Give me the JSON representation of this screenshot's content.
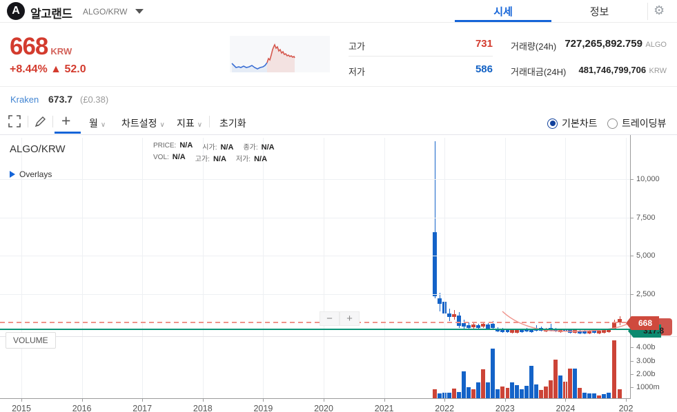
{
  "header": {
    "logo_letter": "A",
    "coin_name": "알고랜드",
    "pair": "ALGO/KRW",
    "tabs": [
      {
        "label": "시세",
        "active": true
      },
      {
        "label": "정보",
        "active": false
      }
    ],
    "gear_icon": "gear-icon"
  },
  "summary": {
    "price": "668",
    "currency": "KRW",
    "change_pct": "+8.44%",
    "change_arrow": "▲",
    "change_abs": "52.0",
    "high_label": "고가",
    "high_value": "731",
    "low_label": "저가",
    "low_value": "586",
    "volume_label": "거래량(24h)",
    "volume_value": "727,265,892.759",
    "volume_unit": "ALGO",
    "turnover_label": "거래대금(24H)",
    "turnover_value": "481,746,799,706",
    "turnover_unit": "KRW"
  },
  "reference": {
    "exchange": "Kraken",
    "price": "673.7",
    "alt_price": "(£0.38)"
  },
  "toolbar": {
    "period": "월",
    "settings": "차트설정",
    "indicators": "지표",
    "reset": "초기화",
    "caret": "∨",
    "plus": "+",
    "chart_type": [
      {
        "label": "기본차트",
        "selected": true
      },
      {
        "label": "트레이딩뷰",
        "selected": false
      }
    ]
  },
  "chart": {
    "symbol": "ALGO/KRW",
    "overlays_label": "Overlays",
    "volume_pane_label": "VOLUME",
    "zoom_out": "−",
    "zoom_in": "+",
    "legend": {
      "price_label": "PRICE:",
      "open_label": "시가:",
      "close_label": "종가:",
      "vol_label": "VOL:",
      "high_label": "고가:",
      "low_label": "저가:",
      "na": "N/A"
    },
    "price_ticks": [
      "10,000",
      "7,500",
      "5,000",
      "2,500"
    ],
    "volume_ticks": [
      "4.00b",
      "3.00b",
      "2.00b",
      "1000m"
    ],
    "years": [
      "2015",
      "2016",
      "2017",
      "2018",
      "2019",
      "2020",
      "2021",
      "2022",
      "2023",
      "2024",
      "202"
    ],
    "current_price_badge": "668",
    "secondary_badge": "317.8",
    "colors": {
      "up": "#cc4437",
      "down": "#1463c8",
      "current_line": "#ef9289",
      "base_line": "#0b9478"
    },
    "candles": [
      [
        630,
        9,
        141,
        234,
        237,
        "d"
      ],
      [
        637,
        229,
        237,
        245,
        256,
        "d"
      ],
      [
        644,
        234,
        242,
        259,
        265,
        "d"
      ],
      [
        651,
        252,
        259,
        264,
        270,
        "d"
      ],
      [
        658,
        254,
        260,
        264,
        268,
        "u"
      ],
      [
        665,
        257,
        262,
        277,
        280,
        "d"
      ],
      [
        672,
        268,
        273,
        278,
        281,
        "d"
      ],
      [
        679,
        272,
        276,
        280,
        282,
        "d"
      ],
      [
        686,
        271,
        275,
        279,
        281,
        "u"
      ],
      [
        693,
        274,
        276,
        280,
        282,
        "d"
      ],
      [
        700,
        272,
        274,
        278,
        280,
        "u"
      ],
      [
        707,
        273,
        275,
        281,
        283,
        "d"
      ],
      [
        714,
        270,
        274,
        280,
        282,
        "d"
      ],
      [
        721,
        279,
        281,
        285,
        286,
        "d"
      ],
      [
        728,
        280,
        282,
        286,
        287,
        "d"
      ],
      [
        735,
        281,
        282,
        286,
        287,
        "d"
      ],
      [
        742,
        282,
        283,
        287,
        288,
        "u"
      ],
      [
        749,
        282,
        283,
        287,
        288,
        "u"
      ],
      [
        756,
        281,
        282,
        286,
        287,
        "d"
      ],
      [
        763,
        280,
        281,
        285,
        286,
        "d"
      ],
      [
        770,
        281,
        282,
        286,
        287,
        "d"
      ],
      [
        777,
        276,
        281,
        284,
        285,
        "d"
      ],
      [
        784,
        278,
        280,
        284,
        285,
        "d"
      ],
      [
        791,
        280,
        281,
        285,
        286,
        "u"
      ],
      [
        798,
        274,
        280,
        284,
        285,
        "d"
      ],
      [
        805,
        280,
        281,
        285,
        286,
        "d"
      ],
      [
        812,
        281,
        282,
        286,
        287,
        "u"
      ],
      [
        819,
        280,
        281,
        285,
        286,
        "d"
      ],
      [
        826,
        282,
        283,
        287,
        288,
        "d"
      ],
      [
        833,
        282,
        283,
        287,
        288,
        "u"
      ],
      [
        840,
        283,
        284,
        288,
        289,
        "d"
      ],
      [
        847,
        283,
        284,
        288,
        289,
        "d"
      ],
      [
        854,
        283,
        284,
        288,
        289,
        "u"
      ],
      [
        861,
        282,
        283,
        287,
        288,
        "d"
      ],
      [
        868,
        283,
        284,
        288,
        289,
        "u"
      ],
      [
        875,
        282,
        283,
        287,
        288,
        "u"
      ],
      [
        882,
        281,
        282,
        286,
        287,
        "u"
      ],
      [
        890,
        268,
        272,
        282,
        282,
        "u"
      ],
      [
        898,
        263,
        267,
        272,
        276,
        "u"
      ]
    ],
    "volumes": [
      [
        630,
        13,
        "u"
      ],
      [
        637,
        7,
        "d"
      ],
      [
        644,
        8,
        "d"
      ],
      [
        651,
        8,
        "d"
      ],
      [
        658,
        14,
        "u"
      ],
      [
        665,
        9,
        "d"
      ],
      [
        672,
        39,
        "d"
      ],
      [
        679,
        16,
        "d"
      ],
      [
        686,
        13,
        "u"
      ],
      [
        693,
        23,
        "d"
      ],
      [
        700,
        42,
        "u"
      ],
      [
        707,
        23,
        "d"
      ],
      [
        714,
        72,
        "d"
      ],
      [
        721,
        13,
        "d"
      ],
      [
        728,
        17,
        "u"
      ],
      [
        735,
        15,
        "u"
      ],
      [
        742,
        23,
        "d"
      ],
      [
        749,
        19,
        "d"
      ],
      [
        756,
        13,
        "d"
      ],
      [
        763,
        18,
        "d"
      ],
      [
        770,
        47,
        "d"
      ],
      [
        777,
        20,
        "d"
      ],
      [
        784,
        12,
        "u"
      ],
      [
        791,
        17,
        "u"
      ],
      [
        798,
        26,
        "u"
      ],
      [
        805,
        56,
        "u"
      ],
      [
        812,
        33,
        "d"
      ],
      [
        819,
        24,
        "u"
      ],
      [
        826,
        43,
        "u"
      ],
      [
        833,
        43,
        "d"
      ],
      [
        840,
        15,
        "u"
      ],
      [
        847,
        8,
        "d"
      ],
      [
        854,
        7,
        "d"
      ],
      [
        861,
        7,
        "d"
      ],
      [
        868,
        4,
        "u"
      ],
      [
        875,
        6,
        "d"
      ],
      [
        882,
        8,
        "d"
      ],
      [
        890,
        84,
        "u"
      ],
      [
        898,
        13,
        "u"
      ]
    ]
  }
}
